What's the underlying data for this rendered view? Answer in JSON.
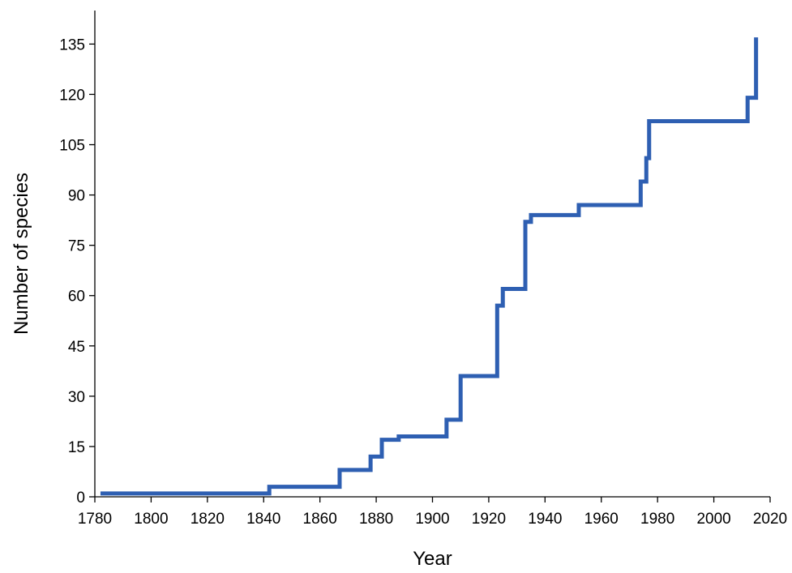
{
  "chart_data": {
    "type": "line",
    "step": true,
    "title": "",
    "xlabel": "Year",
    "ylabel": "Number of species",
    "xlim": [
      1780,
      2020
    ],
    "ylim": [
      0,
      145
    ],
    "x_ticks": [
      1780,
      1800,
      1820,
      1840,
      1860,
      1880,
      1900,
      1920,
      1940,
      1960,
      1980,
      2000,
      2020
    ],
    "y_ticks": [
      0,
      15,
      30,
      45,
      60,
      75,
      90,
      105,
      120,
      135
    ],
    "grid": false,
    "line_color": "#2e5fb2",
    "series": [
      {
        "x": [
          1782,
          1842,
          1867,
          1878,
          1882,
          1888,
          1905,
          1910,
          1923,
          1925,
          1933,
          1935,
          1952,
          1974,
          1976,
          1977,
          2012,
          2015,
          2015
        ],
        "y": [
          1,
          3,
          8,
          12,
          17,
          18,
          23,
          36,
          57,
          62,
          82,
          84,
          87,
          94,
          101,
          112,
          119,
          137,
          137
        ]
      }
    ]
  }
}
